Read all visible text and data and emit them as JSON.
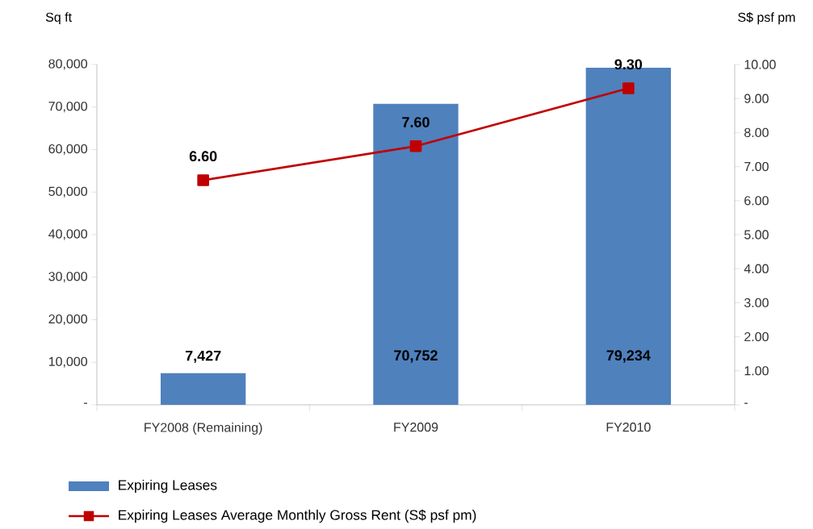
{
  "chart_data": {
    "type": "bar",
    "categories": [
      "FY2008 (Remaining)",
      "FY2009",
      "FY2010"
    ],
    "ylabel": "Sq ft",
    "y2label": "S$ psf pm",
    "series": [
      {
        "name": "Expiring Leases",
        "color": "#4f81bd",
        "values": [
          7427,
          70752,
          79234
        ],
        "value_labels": [
          "7,427",
          "70,752",
          "79,234"
        ]
      },
      {
        "name": "Expiring Leases Average Monthly Gross Rent (S$ psf pm)",
        "type": "line",
        "axis": "y2",
        "color": "#c00000",
        "values": [
          6.6,
          7.6,
          9.3
        ],
        "value_labels": [
          "6.60",
          "7.60",
          "9.30"
        ]
      }
    ],
    "ylim": [
      0,
      80000
    ],
    "yticks": [
      {
        "value": 0,
        "label": "-"
      },
      {
        "value": 10000,
        "label": "10,000"
      },
      {
        "value": 20000,
        "label": "20,000"
      },
      {
        "value": 30000,
        "label": "30,000"
      },
      {
        "value": 40000,
        "label": "40,000"
      },
      {
        "value": 50000,
        "label": "50,000"
      },
      {
        "value": 60000,
        "label": "60,000"
      },
      {
        "value": 70000,
        "label": "70,000"
      },
      {
        "value": 80000,
        "label": "80,000"
      }
    ],
    "y2lim": [
      0,
      10
    ],
    "y2ticks": [
      {
        "value": 0,
        "label": "-"
      },
      {
        "value": 1,
        "label": "1.00"
      },
      {
        "value": 2,
        "label": "2.00"
      },
      {
        "value": 3,
        "label": "3.00"
      },
      {
        "value": 4,
        "label": "4.00"
      },
      {
        "value": 5,
        "label": "5.00"
      },
      {
        "value": 6,
        "label": "6.00"
      },
      {
        "value": 7,
        "label": "7.00"
      },
      {
        "value": 8,
        "label": "8.00"
      },
      {
        "value": 9,
        "label": "9.00"
      },
      {
        "value": 10,
        "label": "10.00"
      }
    ],
    "marker": "square",
    "line_style": "solid",
    "legend": "bottom",
    "grid": false
  }
}
